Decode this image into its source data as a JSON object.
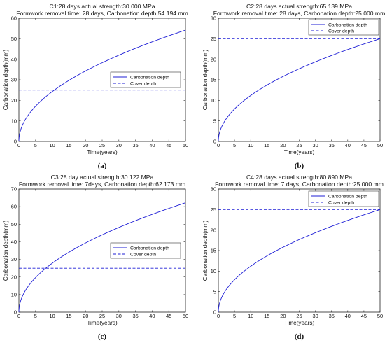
{
  "chart_data": [
    {
      "type": "line",
      "panel_label": "(a)",
      "title": "C1:28 days actual strength:30.000 MPa",
      "subtitle": "Formwork removal time: 28 days, Carbonation depth:54.194 mm",
      "xlabel": "Time(years)",
      "ylabel": "Carbonation depth(mm)",
      "xlim": [
        0,
        50
      ],
      "ylim": [
        0,
        60
      ],
      "xticks": [
        "0",
        "5",
        "10",
        "15",
        "20",
        "25",
        "30",
        "35",
        "40",
        "45",
        "50"
      ],
      "yticks": [
        "0",
        "10",
        "20",
        "30",
        "40",
        "50",
        "60"
      ],
      "legend_position": "center-right",
      "series": [
        {
          "name": "Carbonation depth",
          "style": "solid",
          "color": "#1f1fd6",
          "model": "sqrt",
          "final_value": 54.194
        },
        {
          "name": "Cover depth",
          "style": "dashed",
          "color": "#1f1fd6",
          "model": "constant",
          "value": 25
        }
      ]
    },
    {
      "type": "line",
      "panel_label": "(b)",
      "title": "C2:28 days actual strength:65.139 MPa",
      "subtitle": "Formwork removal time: 28 days, Carbonation depth:25.000 mm",
      "xlabel": "Time(years)",
      "ylabel": "Carbonation depth(mm)",
      "xlim": [
        0,
        50
      ],
      "ylim": [
        0,
        30
      ],
      "xticks": [
        "0",
        "5",
        "10",
        "15",
        "20",
        "25",
        "30",
        "35",
        "40",
        "45",
        "50"
      ],
      "yticks": [
        "0",
        "5",
        "10",
        "15",
        "20",
        "25",
        "30"
      ],
      "legend_position": "top-right",
      "series": [
        {
          "name": "Carbonation depth",
          "style": "solid",
          "color": "#1f1fd6",
          "model": "sqrt",
          "final_value": 25.0
        },
        {
          "name": "Cover depth",
          "style": "dashed",
          "color": "#1f1fd6",
          "model": "constant",
          "value": 25
        }
      ]
    },
    {
      "type": "line",
      "panel_label": "(c)",
      "title": "C3:28 day actual strength:30.122 MPa",
      "subtitle": "Formwork removal time: 7days, Carbonation depth:62.173 mm",
      "xlabel": "Time(years)",
      "ylabel": "Carbonation depth(mm)",
      "xlim": [
        0,
        50
      ],
      "ylim": [
        0,
        70
      ],
      "xticks": [
        "0",
        "5",
        "10",
        "15",
        "20",
        "25",
        "30",
        "35",
        "40",
        "45",
        "50"
      ],
      "yticks": [
        "0",
        "10",
        "20",
        "30",
        "40",
        "50",
        "60",
        "70"
      ],
      "legend_position": "center-right",
      "series": [
        {
          "name": "Carbonation depth",
          "style": "solid",
          "color": "#1f1fd6",
          "model": "sqrt",
          "final_value": 62.173
        },
        {
          "name": "Cover depth",
          "style": "dashed",
          "color": "#1f1fd6",
          "model": "constant",
          "value": 25
        }
      ]
    },
    {
      "type": "line",
      "panel_label": "(d)",
      "title": "C4:28 days actual strength:80.890 MPa",
      "subtitle": "Formwork removal time: 7 days, Carbonation depth:25.000 mm",
      "xlabel": "Time(years)",
      "ylabel": "Carbonation depth(mm)",
      "xlim": [
        0,
        50
      ],
      "ylim": [
        0,
        30
      ],
      "xticks": [
        "0",
        "5",
        "10",
        "15",
        "20",
        "25",
        "30",
        "35",
        "40",
        "45",
        "50"
      ],
      "yticks": [
        "0",
        "5",
        "10",
        "15",
        "20",
        "25",
        "30"
      ],
      "legend_position": "top-right",
      "series": [
        {
          "name": "Carbonation depth",
          "style": "solid",
          "color": "#1f1fd6",
          "model": "sqrt",
          "final_value": 25.0
        },
        {
          "name": "Cover depth",
          "style": "dashed",
          "color": "#1f1fd6",
          "model": "constant",
          "value": 25
        }
      ]
    }
  ]
}
